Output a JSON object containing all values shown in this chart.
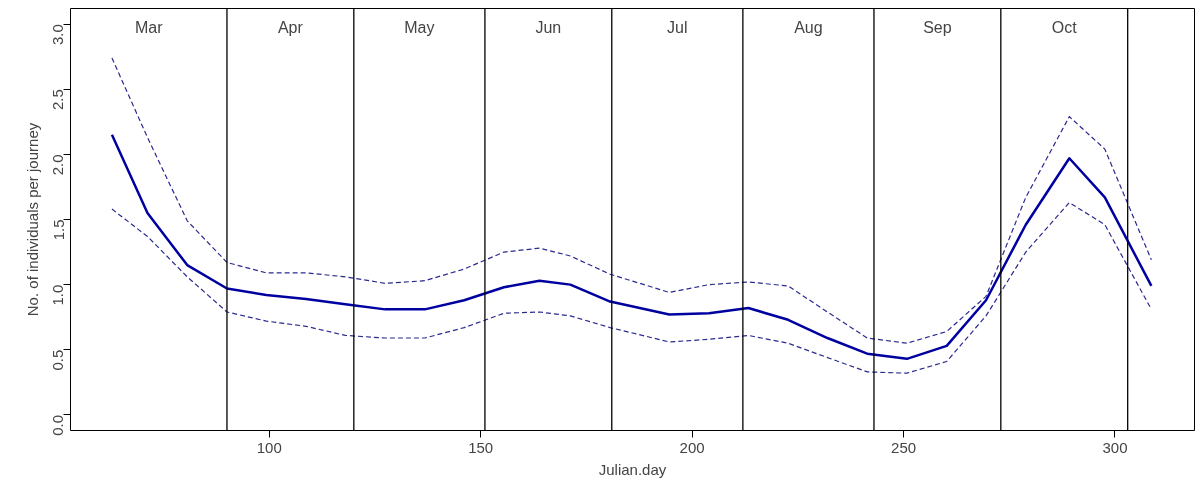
{
  "chart_data": {
    "type": "line",
    "xlabel": "Julian.day",
    "ylabel": "No. of individuals per journey",
    "x": [
      62.8,
      71.2,
      80.6,
      90,
      99.3,
      108.7,
      118,
      127.4,
      136.8,
      146.1,
      155.5,
      163.9,
      171.2,
      180.6,
      194.6,
      204,
      213.3,
      222.7,
      232,
      241.4,
      250.8,
      260.2,
      269.5,
      278.9,
      289.2,
      297.6,
      308.6
    ],
    "series": [
      {
        "color": "#0000a0",
        "line_style": "solid",
        "values": [
          2.15,
          1.55,
          1.15,
          0.97,
          0.92,
          0.89,
          0.85,
          0.81,
          0.81,
          0.88,
          0.98,
          1.03,
          1.0,
          0.87,
          0.77,
          0.78,
          0.82,
          0.73,
          0.59,
          0.47,
          0.43,
          0.53,
          0.88,
          1.46,
          1.97,
          1.67,
          0.99
        ]
      },
      {
        "color": "#2a2a90",
        "line_style": "dashed",
        "values": [
          2.74,
          2.13,
          1.49,
          1.17,
          1.09,
          1.09,
          1.06,
          1.01,
          1.03,
          1.12,
          1.25,
          1.28,
          1.22,
          1.08,
          0.94,
          1.0,
          1.02,
          0.99,
          0.79,
          0.59,
          0.55,
          0.64,
          0.91,
          1.67,
          2.29,
          2.04,
          1.19
        ]
      },
      {
        "color": "#2a2a90",
        "line_style": "dashed",
        "values": [
          1.58,
          1.37,
          1.06,
          0.79,
          0.72,
          0.68,
          0.61,
          0.59,
          0.59,
          0.67,
          0.78,
          0.79,
          0.76,
          0.67,
          0.56,
          0.58,
          0.61,
          0.55,
          0.44,
          0.33,
          0.32,
          0.41,
          0.76,
          1.25,
          1.63,
          1.46,
          0.81
        ]
      }
    ],
    "xlim": [
      53,
      318.8
    ],
    "xticks": [
      100,
      150,
      200,
      250,
      300
    ],
    "ylim": [
      -0.12,
      3.12
    ],
    "yticks": [
      {
        "value": 0,
        "label": "0.0"
      },
      {
        "value": 0.5,
        "label": "0.5"
      },
      {
        "value": 1,
        "label": "1.0"
      },
      {
        "value": 1.5,
        "label": "1.5"
      },
      {
        "value": 2,
        "label": "2.0"
      },
      {
        "value": 2.5,
        "label": "2.5"
      },
      {
        "value": 3,
        "label": "3.0"
      }
    ],
    "ref_lines": [
      {
        "axis": "x",
        "value": 90,
        "color": "#000000"
      },
      {
        "axis": "x",
        "value": 120,
        "color": "#000000"
      },
      {
        "axis": "x",
        "value": 151,
        "color": "#000000"
      },
      {
        "axis": "x",
        "value": 181,
        "color": "#000000"
      },
      {
        "axis": "x",
        "value": 212,
        "color": "#000000"
      },
      {
        "axis": "x",
        "value": 243,
        "color": "#000000"
      },
      {
        "axis": "x",
        "value": 273,
        "color": "#000000"
      },
      {
        "axis": "x",
        "value": 303,
        "color": "#000000"
      }
    ],
    "annotations": [
      "Mar",
      "Apr",
      "May",
      "Jun",
      "Jul",
      "Aug",
      "Sep",
      "Oct"
    ],
    "grid": false
  }
}
